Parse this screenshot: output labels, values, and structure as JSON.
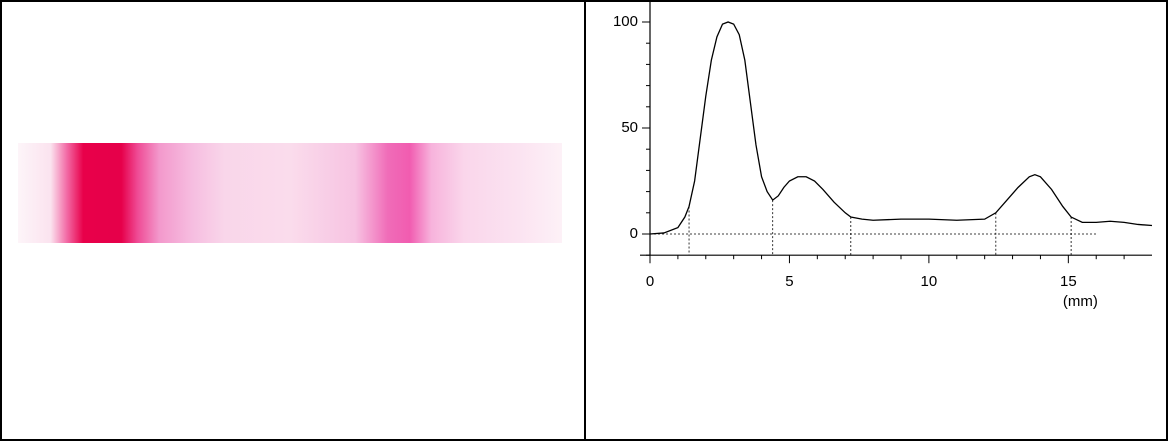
{
  "chart_data": {
    "type": "line",
    "x": [
      0,
      0.5,
      1.0,
      1.25,
      1.4,
      1.6,
      1.8,
      2.0,
      2.2,
      2.4,
      2.6,
      2.8,
      3.0,
      3.2,
      3.4,
      3.6,
      3.8,
      4.0,
      4.2,
      4.4,
      4.6,
      4.8,
      5.0,
      5.3,
      5.6,
      5.9,
      6.2,
      6.6,
      7.0,
      7.2,
      7.6,
      8,
      9,
      10,
      11,
      12,
      12.4,
      12.8,
      13.2,
      13.6,
      13.8,
      14.0,
      14.4,
      14.8,
      15.1,
      15.5,
      16,
      16.5,
      17,
      17.5,
      18
    ],
    "series": [
      {
        "color": "#000000",
        "values": [
          0,
          0.5,
          3,
          8,
          13,
          25,
          45,
          65,
          82,
          93,
          99,
          100,
          99,
          94,
          82,
          62,
          42,
          27,
          20,
          16,
          18,
          22,
          25,
          27,
          27,
          25,
          21,
          15,
          10,
          8,
          7,
          6.5,
          7,
          7,
          6.5,
          7,
          10,
          16,
          22,
          27,
          28,
          27,
          21,
          13,
          8,
          5.5,
          5.5,
          6,
          5.5,
          4.5,
          4
        ]
      }
    ],
    "boundaries": [
      1.4,
      4.4,
      7.2,
      12.4,
      15.1
    ],
    "xlim": [
      0,
      18
    ],
    "ylim": [
      -10,
      110
    ],
    "xticks": [
      0,
      5,
      10,
      15
    ],
    "yticks": [
      0,
      50,
      100
    ],
    "xminorticks": [
      1,
      2,
      3,
      4,
      6,
      7,
      8,
      9,
      11,
      12,
      13,
      14,
      16,
      17
    ],
    "yminorticks": [
      -10,
      10,
      20,
      30,
      40,
      60,
      70,
      80,
      90
    ],
    "xlabel": "(mm)"
  }
}
